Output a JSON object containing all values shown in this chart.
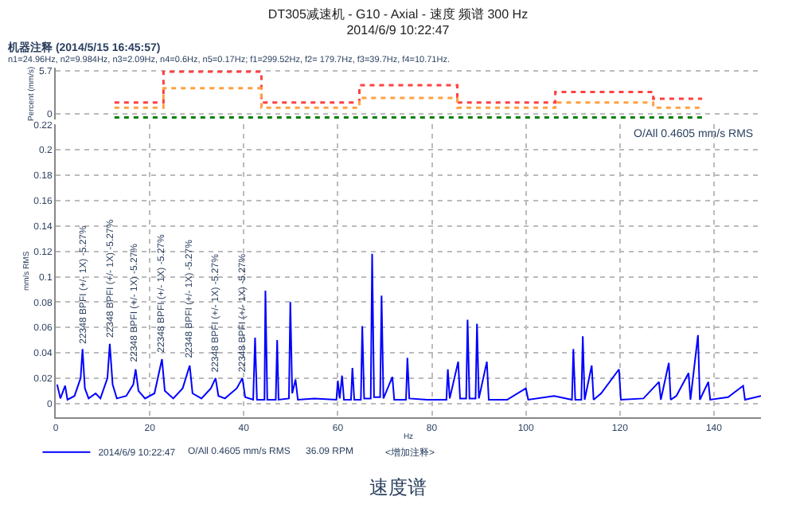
{
  "chart_data": [
    {
      "type": "line",
      "xlabel": "Hz",
      "ylabel": "mm/s RMS",
      "xlim": [
        0,
        150
      ],
      "xticks": [
        0,
        20,
        40,
        60,
        80,
        100,
        120,
        140
      ],
      "ylim": [
        -0.011,
        0.22
      ],
      "yticks": [
        0,
        0.02,
        0.04,
        0.06,
        0.08,
        0.1,
        0.12,
        0.14,
        0.16,
        0.18,
        0.2,
        0.22
      ],
      "grid": true,
      "legend": "bottom",
      "marker": "none",
      "line_style": "solid",
      "x": [
        0.3,
        1,
        2,
        2.5,
        4,
        5.3,
        5.7,
        6.2,
        7,
        8.5,
        9.5,
        11,
        11.5,
        12.1,
        13,
        15,
        16.5,
        17,
        17.6,
        19,
        21,
        22.6,
        23.2,
        25,
        27,
        28.5,
        29.1,
        31,
        33,
        34,
        34.6,
        36,
        38.5,
        39.7,
        40.3,
        42,
        42.4,
        42.8,
        44.4,
        44.6,
        45,
        46.8,
        47.1,
        47.4,
        49.6,
        49.9,
        50.3,
        51,
        51.5,
        55,
        59.7,
        60,
        60.4,
        60.9,
        61.3,
        62.8,
        63.1,
        63.5,
        64.9,
        65.2,
        65.6,
        67,
        67.3,
        67.7,
        69,
        69.3,
        69.7,
        71.6,
        72,
        74.5,
        74.8,
        75.2,
        79,
        83.1,
        83.4,
        83.8,
        85.6,
        86,
        87.3,
        87.6,
        88,
        89.3,
        89.6,
        90,
        91.7,
        92.1,
        96,
        100,
        100.5,
        106,
        109.8,
        110.1,
        110.5,
        111.8,
        112.1,
        112.5,
        114,
        114.4,
        116,
        119.8,
        120.2,
        125,
        128.3,
        128.7,
        130.4,
        130.8,
        132,
        134.6,
        135,
        136.6,
        137,
        138.8,
        139.2,
        143,
        146.2,
        146.6,
        150
      ],
      "series": [
        {
          "name": "2014/6/9 10:22:47",
          "color": "#0000ff",
          "values": [
            0.015,
            0.004,
            0.014,
            0.003,
            0.006,
            0.02,
            0.043,
            0.012,
            0.004,
            0.008,
            0.004,
            0.02,
            0.047,
            0.015,
            0.004,
            0.006,
            0.015,
            0.027,
            0.01,
            0.004,
            0.008,
            0.035,
            0.01,
            0.004,
            0.012,
            0.03,
            0.008,
            0.004,
            0.012,
            0.02,
            0.006,
            0.004,
            0.012,
            0.02,
            0.005,
            0.003,
            0.052,
            0.003,
            0.003,
            0.089,
            0.003,
            0.003,
            0.05,
            0.003,
            0.004,
            0.08,
            0.008,
            0.019,
            0.003,
            0.004,
            0.003,
            0.018,
            0.004,
            0.022,
            0.003,
            0.003,
            0.028,
            0.003,
            0.003,
            0.061,
            0.004,
            0.004,
            0.118,
            0.005,
            0.005,
            0.085,
            0.004,
            0.021,
            0.003,
            0.003,
            0.036,
            0.004,
            0.003,
            0.003,
            0.027,
            0.004,
            0.033,
            0.004,
            0.004,
            0.066,
            0.004,
            0.004,
            0.063,
            0.004,
            0.033,
            0.003,
            0.003,
            0.012,
            0.003,
            0.006,
            0.003,
            0.043,
            0.003,
            0.003,
            0.053,
            0.003,
            0.03,
            0.003,
            0.008,
            0.027,
            0.003,
            0.004,
            0.017,
            0.003,
            0.032,
            0.003,
            0.006,
            0.024,
            0.003,
            0.054,
            0.003,
            0.017,
            0.003,
            0.005,
            0.014,
            0.003,
            0.006
          ]
        }
      ],
      "annotations": [
        "O/All 0.4605 mm/s RMS",
        "O/All 0.4605 mm/s RMS",
        "36.09 RPM",
        "<增加注释>",
        "速度谱",
        {
          "text": "22348 BPFI (+/- 1X) -5.27%",
          "x": 5.7,
          "y": 0.045
        },
        {
          "text": "22348 BPFI (+/- 1X) -5.27%",
          "x": 11.5,
          "y": 0.05
        },
        {
          "text": "22348 BPFI (+/- 1X) -5.27%",
          "x": 17,
          "y": 0.03
        },
        {
          "text": "22348 BPFI (+/- 1X) -5.27%",
          "x": 22.6,
          "y": 0.038
        },
        {
          "text": "22348 BPFI (+/- 1X) -5.27%",
          "x": 28.5,
          "y": 0.033
        },
        {
          "text": "22348 BPFI (+/- 1X) -5.27%",
          "x": 34,
          "y": 0.022
        },
        {
          "text": "22348 BPFI (+/- 1X) -5.27%",
          "x": 39.7,
          "y": 0.022
        }
      ]
    },
    {
      "type": "step",
      "title": "DT305减速机 - G10 - Axial - 速度 频谱 300 Hz\n2014/6/9 10:22:47",
      "subtitle": "机器注释 (2014/5/15 16:45:57)",
      "annotations": [
        "n1=24.96Hz, n2=9.984Hz, n3=2.09Hz, n4=0.6Hz, n5=0.17Hz; f1=299.52Hz, f2= 179.7Hz, f3=39.7Hz, f4=10.71Hz."
      ],
      "ylabel": "Percent (mm/s)",
      "categories": [
        null,
        null,
        null,
        null,
        null,
        null,
        null
      ],
      "ylim": [
        -0.8,
        6.1
      ],
      "yticks": [
        0,
        5.7
      ],
      "grid": true,
      "tick_labels": "y",
      "marker": "none",
      "line_style": "dotted",
      "series": [
        {
          "color": "#ff4040",
          "values": [
            1.5,
            5.6,
            1.5,
            3.8,
            1.5,
            2.9,
            2.0
          ]
        },
        {
          "color": "#ffa040",
          "values": [
            0.8,
            3.4,
            0.8,
            2.1,
            0.8,
            1.5,
            0.8
          ]
        },
        {
          "color": "#008000",
          "values": [
            -0.5,
            -0.5,
            -0.5,
            -0.5,
            -0.5,
            -0.5,
            -0.5
          ]
        }
      ]
    }
  ]
}
